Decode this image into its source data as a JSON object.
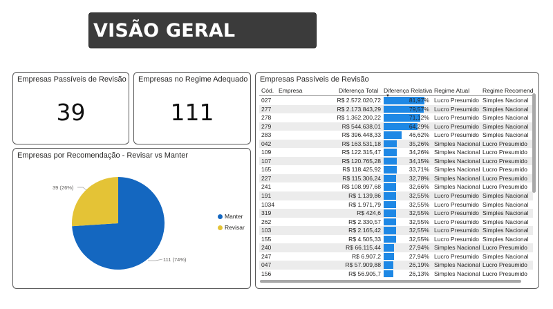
{
  "header": {
    "title": "VISÃO GERAL"
  },
  "kpis": [
    {
      "title": "Empresas Passíveis de Revisão",
      "value": "39"
    },
    {
      "title": "Empresas no Regime Adequado",
      "value": "111"
    }
  ],
  "pie_card": {
    "title": "Empresas por Recomendação - Revisar vs Manter",
    "label_revisar": "39 (26%)",
    "label_manter": "111 (74%)",
    "legend": [
      {
        "label": "Manter",
        "color": "#1467c0"
      },
      {
        "label": "Revisar",
        "color": "#e4c336"
      }
    ]
  },
  "chart_data": {
    "type": "pie",
    "title": "Empresas por Recomendação - Revisar vs Manter",
    "slices": [
      {
        "label": "Manter",
        "value": 111,
        "percent": 74,
        "color": "#1467c0"
      },
      {
        "label": "Revisar",
        "value": 39,
        "percent": 26,
        "color": "#e4c336"
      }
    ]
  },
  "table": {
    "title": "Empresas Passíveis de Revisão",
    "columns": [
      "Cód.",
      "Empresa",
      "Diferença Total",
      "Diferença Relativa",
      "Regime Atual",
      "Regime Recomendado"
    ],
    "rows": [
      [
        "027",
        "R$ 2.572.020,72",
        81.97,
        "81,97%",
        "Lucro Presumido",
        "Simples Nacional"
      ],
      [
        "277",
        "R$ 2.173.843,29",
        79.57,
        "79,57%",
        "Lucro Presumido",
        "Simples Nacional"
      ],
      [
        "278",
        "R$ 1.362.200,22",
        71.12,
        "71,12%",
        "Lucro Presumido",
        "Simples Nacional"
      ],
      [
        "279",
        "R$ 544.638,01",
        64.29,
        "64,29%",
        "Lucro Presumido",
        "Simples Nacional"
      ],
      [
        "283",
        "R$ 396.448,33",
        46.62,
        "46,62%",
        "Lucro Presumido",
        "Simples Nacional"
      ],
      [
        "042",
        "R$ 163.531,18",
        35.26,
        "35,26%",
        "Simples Nacional",
        "Lucro Presumido"
      ],
      [
        "109",
        "R$ 122.315,47",
        34.26,
        "34,26%",
        "Simples Nacional",
        "Lucro Presumido"
      ],
      [
        "107",
        "R$ 120.765,28",
        34.15,
        "34,15%",
        "Simples Nacional",
        "Lucro Presumido"
      ],
      [
        "165",
        "R$ 118.425,92",
        33.71,
        "33,71%",
        "Simples Nacional",
        "Lucro Presumido"
      ],
      [
        "227",
        "R$ 115.306,24",
        32.78,
        "32,78%",
        "Simples Nacional",
        "Lucro Presumido"
      ],
      [
        "241",
        "R$ 108.997,68",
        32.66,
        "32,66%",
        "Simples Nacional",
        "Lucro Presumido"
      ],
      [
        "191",
        "R$ 1.139,86",
        32.55,
        "32,55%",
        "Lucro Presumido",
        "Simples Nacional"
      ],
      [
        "1034",
        "R$ 1.971,79",
        32.55,
        "32,55%",
        "Lucro Presumido",
        "Simples Nacional"
      ],
      [
        "319",
        "R$ 424,6",
        32.55,
        "32,55%",
        "Lucro Presumido",
        "Simples Nacional"
      ],
      [
        "262",
        "R$ 2.330,57",
        32.55,
        "32,55%",
        "Lucro Presumido",
        "Simples Nacional"
      ],
      [
        "103",
        "R$ 2.165,42",
        32.55,
        "32,55%",
        "Lucro Presumido",
        "Simples Nacional"
      ],
      [
        "155",
        "R$ 4.505,33",
        32.55,
        "32,55%",
        "Lucro Presumido",
        "Simples Nacional"
      ],
      [
        "240",
        "R$ 66.115,44",
        27.94,
        "27,94%",
        "Simples Nacional",
        "Lucro Presumido"
      ],
      [
        "247",
        "R$ 6.907,2",
        27.94,
        "27,94%",
        "Lucro Presumido",
        "Simples Nacional"
      ],
      [
        "047",
        "R$ 57.909,88",
        26.19,
        "26,19%",
        "Simples Nacional",
        "Lucro Presumido"
      ],
      [
        "156",
        "R$ 56.905,7",
        26.13,
        "26,13%",
        "Simples Nacional",
        "Lucro Presumido"
      ]
    ]
  }
}
